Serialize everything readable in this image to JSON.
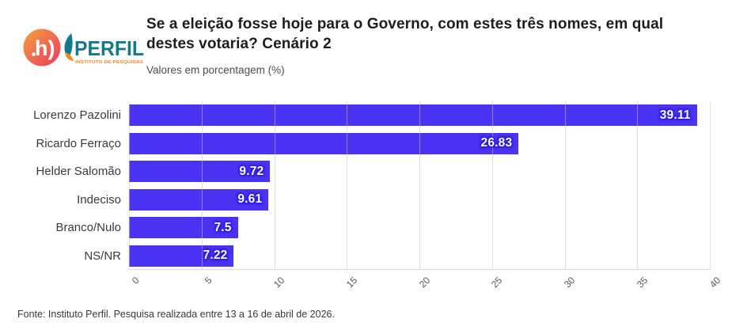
{
  "logo": {
    "monogram": "h)",
    "brand": "PERFIL",
    "tagline": "INSTITUTO DE PESQUISAS"
  },
  "header": {
    "title": "Se a eleição fosse hoje para o Governo, com estes três nomes, em qual\ndestes votaria? Cenário 2",
    "subtitle": "Valores em porcentagem (%)"
  },
  "chart_data": {
    "type": "bar",
    "orientation": "horizontal",
    "title": "Se a eleição fosse hoje para o Governo, com estes três nomes, em qual destes votaria? Cenário 2",
    "subtitle": "Valores em porcentagem (%)",
    "categories": [
      "Lorenzo Pazolini",
      "Ricardo Ferraço",
      "Helder Salomão",
      "Indeciso",
      "Branco/Nulo",
      "NS/NR"
    ],
    "values": [
      39.11,
      26.83,
      9.72,
      9.61,
      7.5,
      7.22
    ],
    "value_labels": [
      "39.11",
      "26.83",
      "9.72",
      "9.61",
      "7.5",
      "7.22"
    ],
    "xlim": [
      0,
      40
    ],
    "x_ticks": [
      0,
      5,
      10,
      15,
      20,
      25,
      30,
      35,
      40
    ],
    "grid": true,
    "legend": false,
    "bar_color": "#4a33f2"
  },
  "footer": {
    "source": "Fonte: Instituto Perfil. Pesquisa realizada entre 13 a 16 de abril de 2026."
  },
  "colors": {
    "bar": "#4a33f2",
    "value_halo": "#2b16e0",
    "gridline": "#c5c5ce",
    "logo_teal": "#15798d",
    "logo_orange": "#ef8b2b",
    "logo_gradient_from": "#f7a03c",
    "logo_gradient_to": "#ea3a62"
  }
}
